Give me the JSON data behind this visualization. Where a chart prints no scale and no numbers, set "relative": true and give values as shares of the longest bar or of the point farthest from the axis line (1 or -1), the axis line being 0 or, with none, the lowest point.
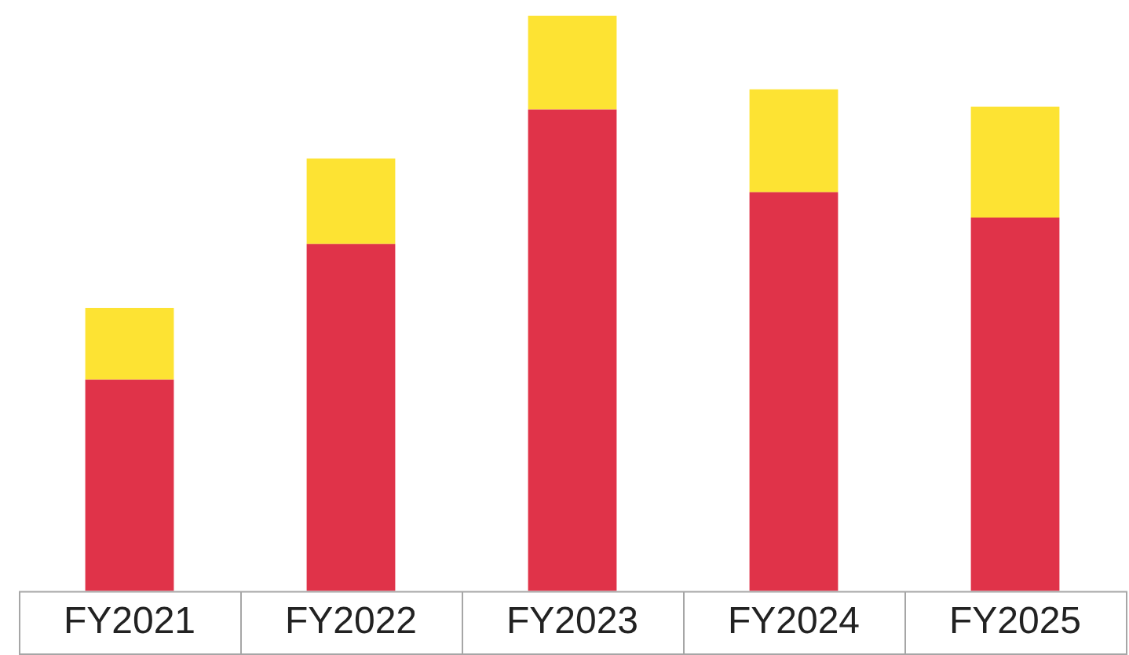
{
  "chart_data": {
    "type": "bar",
    "relative": true,
    "stacked": true,
    "grid": false,
    "legend": false,
    "categories": [
      "FY2021",
      "FY2022",
      "FY2023",
      "FY2024",
      "FY2025"
    ],
    "series": [
      {
        "color": "#e03349",
        "values": [
          0.367,
          0.603,
          0.837,
          0.693,
          0.649
        ]
      },
      {
        "color": "#fde333",
        "values": [
          0.125,
          0.149,
          0.163,
          0.179,
          0.193
        ]
      }
    ]
  }
}
